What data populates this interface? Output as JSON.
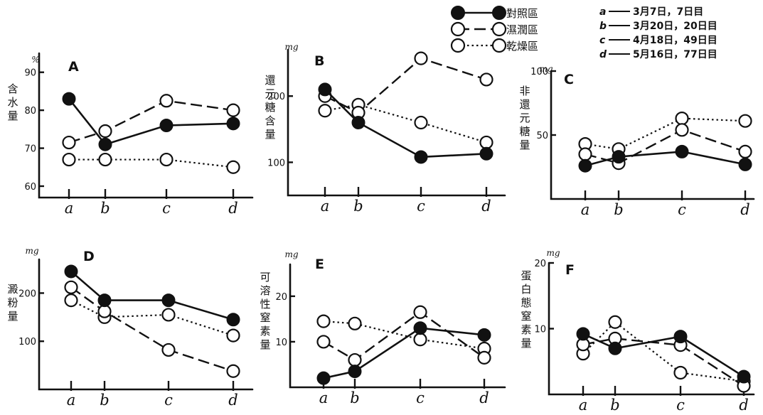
{
  "legend": {
    "series": [
      {
        "key": "control",
        "label": "對照區",
        "style": "solid",
        "marker": "filled"
      },
      {
        "key": "wet",
        "label": "濕潤區",
        "style": "dashed",
        "marker": "open"
      },
      {
        "key": "dry",
        "label": "乾燥區",
        "style": "dotted",
        "marker": "open"
      }
    ],
    "dates": [
      {
        "letter": "a",
        "text": "3月7日，7日目"
      },
      {
        "letter": "b",
        "text": "3月20日，20日目"
      },
      {
        "letter": "c",
        "text": "4月18日，49日目"
      },
      {
        "letter": "d",
        "text": "5月16日，77日目"
      }
    ]
  },
  "chart_data": [
    {
      "id": "A",
      "type": "line",
      "letter": "A",
      "unit": "%",
      "ylabel_chars": [
        "含",
        "水",
        "量"
      ],
      "categories": [
        "a",
        "b",
        "c",
        "d"
      ],
      "x": [
        7,
        20,
        49,
        77
      ],
      "ylim": [
        57,
        95
      ],
      "yticks": [
        60,
        70,
        80,
        90
      ],
      "ytick_labels": [
        "60",
        "70",
        "80",
        "90"
      ],
      "series": [
        {
          "name": "對照區",
          "key": "control",
          "values": [
            83,
            71,
            76,
            76.5
          ]
        },
        {
          "name": "濕潤區",
          "key": "wet",
          "values": [
            71.5,
            74.5,
            82.5,
            80
          ]
        },
        {
          "name": "乾燥區",
          "key": "dry",
          "values": [
            67,
            67,
            67,
            65
          ]
        }
      ]
    },
    {
      "id": "B",
      "type": "line",
      "letter": "B",
      "unit": "mg",
      "ylabel_chars": [
        "還",
        "元",
        "糖",
        "含",
        "量"
      ],
      "categories": [
        "a",
        "b",
        "c",
        "d"
      ],
      "x": [
        7,
        20,
        49,
        77
      ],
      "ylim": [
        50,
        270
      ],
      "yticks": [
        100,
        200
      ],
      "ytick_labels": [
        "100",
        "200"
      ],
      "series": [
        {
          "name": "對照區",
          "key": "control",
          "values": [
            210,
            160,
            108,
            113
          ]
        },
        {
          "name": "濕潤區",
          "key": "wet",
          "values": [
            200,
            175,
            257,
            225
          ]
        },
        {
          "name": "乾燥區",
          "key": "dry",
          "values": [
            178,
            187,
            160,
            130
          ]
        }
      ]
    },
    {
      "id": "C",
      "type": "line",
      "letter": "C",
      "unit": "mg",
      "ylabel_chars": [
        "非",
        "還",
        "元",
        "糖",
        "量"
      ],
      "categories": [
        "a",
        "b",
        "c",
        "d"
      ],
      "x": [
        7,
        20,
        49,
        77
      ],
      "ylim": [
        0,
        100
      ],
      "yticks": [
        50,
        100
      ],
      "ytick_labels": [
        "50",
        "100"
      ],
      "series": [
        {
          "name": "對照區",
          "key": "control",
          "values": [
            26,
            33,
            37,
            27
          ]
        },
        {
          "name": "濕潤區",
          "key": "wet",
          "values": [
            35,
            28,
            54,
            37
          ]
        },
        {
          "name": "乾燥區",
          "key": "dry",
          "values": [
            43,
            39,
            63,
            61
          ]
        }
      ]
    },
    {
      "id": "D",
      "type": "line",
      "letter": "D",
      "unit": "mg",
      "ylabel_chars": [
        "澱",
        "粉",
        "量"
      ],
      "categories": [
        "a",
        "b",
        "c",
        "d"
      ],
      "x": [
        7,
        20,
        49,
        77
      ],
      "ylim": [
        0,
        270
      ],
      "yticks": [
        100,
        200
      ],
      "ytick_labels": [
        "100",
        "200"
      ],
      "series": [
        {
          "name": "對照區",
          "key": "control",
          "values": [
            245,
            185,
            185,
            145
          ]
        },
        {
          "name": "濕潤區",
          "key": "wet",
          "values": [
            212,
            162,
            82,
            38
          ]
        },
        {
          "name": "乾燥區",
          "key": "dry",
          "values": [
            185,
            150,
            155,
            112
          ]
        }
      ]
    },
    {
      "id": "E",
      "type": "line",
      "letter": "E",
      "unit": "mg",
      "ylabel_chars": [
        "可",
        "溶",
        "性",
        "窒",
        "素",
        "量"
      ],
      "categories": [
        "a",
        "b",
        "c",
        "d"
      ],
      "x": [
        7,
        20,
        49,
        77
      ],
      "ylim": [
        0,
        27
      ],
      "yticks": [
        10,
        20
      ],
      "ytick_labels": [
        "10",
        "20"
      ],
      "series": [
        {
          "name": "對照區",
          "key": "control",
          "values": [
            2,
            3.5,
            13,
            11.5
          ]
        },
        {
          "name": "濕潤區",
          "key": "wet",
          "values": [
            10,
            6,
            16.5,
            6.5
          ]
        },
        {
          "name": "乾燥區",
          "key": "dry",
          "values": [
            14.5,
            14,
            10.5,
            8.5
          ]
        }
      ]
    },
    {
      "id": "F",
      "type": "line",
      "letter": "F",
      "unit": "mg",
      "ylabel_chars": [
        "蛋",
        "白",
        "態",
        "窒",
        "素",
        "量"
      ],
      "categories": [
        "a",
        "b",
        "c",
        "d"
      ],
      "x": [
        7,
        20,
        49,
        77
      ],
      "ylim": [
        0,
        20
      ],
      "yticks": [
        10,
        20
      ],
      "ytick_labels": [
        "10",
        "20"
      ],
      "series": [
        {
          "name": "對照區",
          "key": "control",
          "values": [
            9.2,
            7,
            8.8,
            2.7
          ]
        },
        {
          "name": "濕潤區",
          "key": "wet",
          "values": [
            7.6,
            8.5,
            7.5,
            1.3
          ]
        },
        {
          "name": "乾燥區",
          "key": "dry",
          "values": [
            6.2,
            11,
            3.3,
            2
          ]
        }
      ]
    }
  ]
}
